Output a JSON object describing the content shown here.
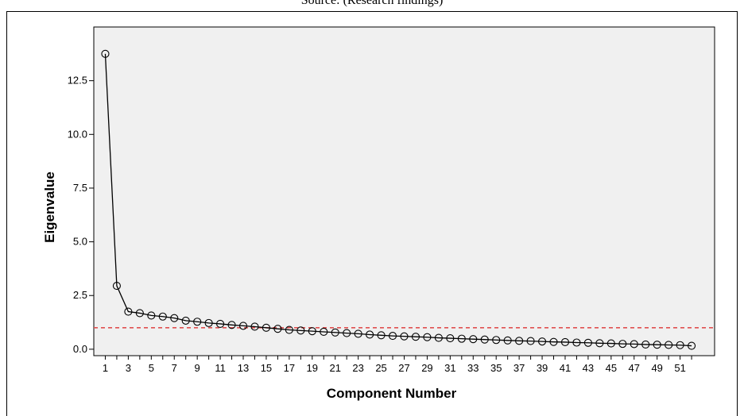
{
  "caption": "Source: (Research findings)",
  "chart_data": {
    "type": "line",
    "xlabel": "Component Number",
    "ylabel": "Eigenvalue",
    "ylim": [
      -0.3,
      15.0
    ],
    "xlim": [
      0,
      54
    ],
    "y_ticks": [
      "0.0",
      "2.5",
      "5.0",
      "7.5",
      "10.0",
      "12.5"
    ],
    "x_ticks": [
      "1",
      "3",
      "5",
      "7",
      "9",
      "11",
      "13",
      "15",
      "17",
      "19",
      "21",
      "23",
      "25",
      "27",
      "29",
      "31",
      "33",
      "35",
      "37",
      "39",
      "41",
      "43",
      "45",
      "47",
      "49",
      "51"
    ],
    "x": [
      1,
      2,
      3,
      4,
      5,
      6,
      7,
      8,
      9,
      10,
      11,
      12,
      13,
      14,
      15,
      16,
      17,
      18,
      19,
      20,
      21,
      22,
      23,
      24,
      25,
      26,
      27,
      28,
      29,
      30,
      31,
      32,
      33,
      34,
      35,
      36,
      37,
      38,
      39,
      40,
      41,
      42,
      43,
      44,
      45,
      46,
      47,
      48,
      49,
      50,
      51,
      52
    ],
    "values": [
      13.75,
      2.95,
      1.75,
      1.68,
      1.57,
      1.52,
      1.45,
      1.33,
      1.28,
      1.22,
      1.18,
      1.13,
      1.09,
      1.05,
      1.0,
      0.95,
      0.9,
      0.87,
      0.84,
      0.81,
      0.78,
      0.75,
      0.72,
      0.68,
      0.65,
      0.62,
      0.6,
      0.58,
      0.56,
      0.53,
      0.51,
      0.49,
      0.47,
      0.45,
      0.43,
      0.41,
      0.39,
      0.38,
      0.36,
      0.34,
      0.33,
      0.31,
      0.3,
      0.28,
      0.27,
      0.25,
      0.24,
      0.22,
      0.21,
      0.2,
      0.19,
      0.16
    ],
    "reference_line": {
      "y": 1.0,
      "color": "#e05050",
      "style": "dashed"
    },
    "grid": false,
    "plot_background": "#f0f0f0",
    "line_color": "#000000"
  }
}
